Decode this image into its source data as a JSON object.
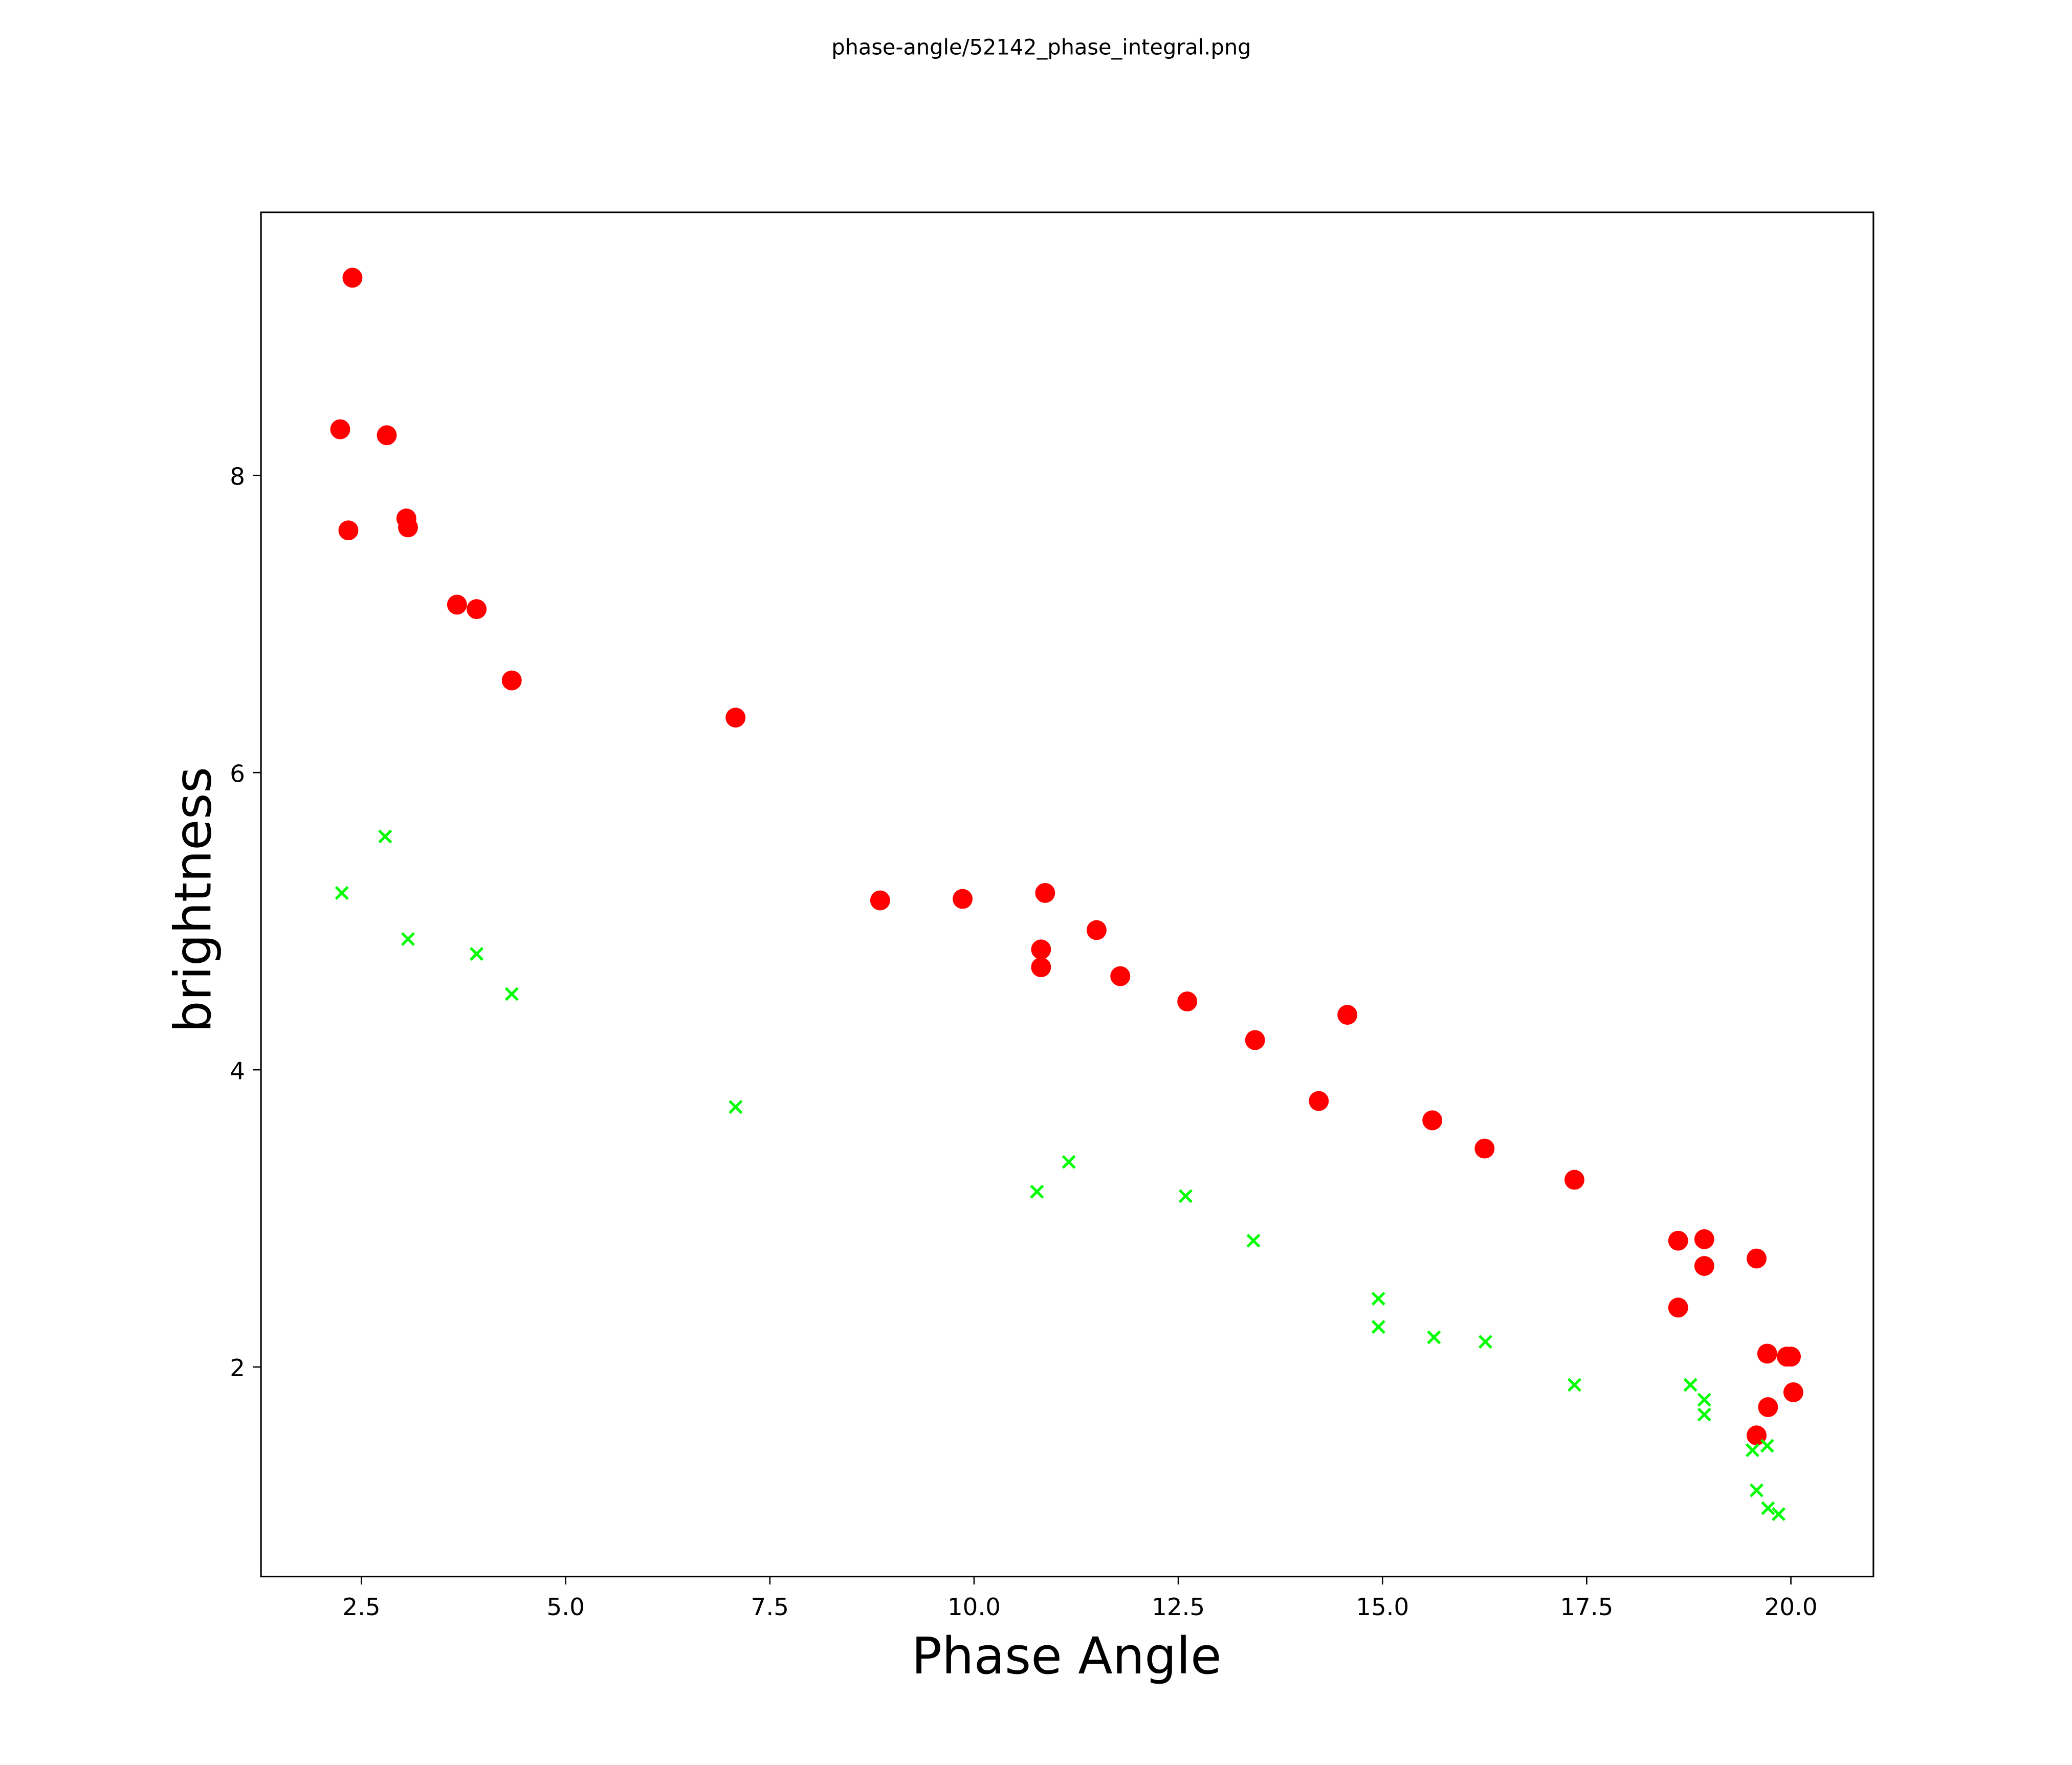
{
  "chart_data": {
    "type": "scatter",
    "title": "phase-angle/52142_phase_integral.png",
    "xlabel": "Phase Angle",
    "ylabel": "brightness",
    "xlim": [
      1.27,
      21.01
    ],
    "ylim": [
      0.59,
      9.77
    ],
    "xticks": [
      2.5,
      5.0,
      7.5,
      10.0,
      12.5,
      15.0,
      17.5,
      20.0
    ],
    "xtick_labels": [
      "2.5",
      "5.0",
      "7.5",
      "10.0",
      "12.5",
      "15.0",
      "17.5",
      "20.0"
    ],
    "yticks": [
      2,
      4,
      6,
      8
    ],
    "ytick_labels": [
      "2",
      "4",
      "6",
      "8"
    ],
    "grid": false,
    "series": [
      {
        "name": "red-circles",
        "color": "#ff0000",
        "marker": "circle",
        "x": [
          2.39,
          2.24,
          2.81,
          2.34,
          3.05,
          3.07,
          3.67,
          3.91,
          4.34,
          7.08,
          8.85,
          9.86,
          10.87,
          10.82,
          10.82,
          11.5,
          11.79,
          12.61,
          13.44,
          14.57,
          14.22,
          15.61,
          16.25,
          17.35,
          18.62,
          18.94,
          18.94,
          18.62,
          19.58,
          19.71,
          19.95,
          20.0,
          20.03,
          19.72,
          19.58
        ],
        "y": [
          9.33,
          8.31,
          8.27,
          7.63,
          7.71,
          7.65,
          7.13,
          7.1,
          6.62,
          6.37,
          5.14,
          5.15,
          5.19,
          4.81,
          4.69,
          4.94,
          4.63,
          4.46,
          4.2,
          4.37,
          3.79,
          3.66,
          3.47,
          3.26,
          2.85,
          2.86,
          2.68,
          2.4,
          2.73,
          2.09,
          2.07,
          2.07,
          1.83,
          1.73,
          1.54
        ]
      },
      {
        "name": "green-crosses",
        "color": "#00ff00",
        "marker": "x",
        "x": [
          2.79,
          2.26,
          3.07,
          3.91,
          4.34,
          7.08,
          10.77,
          11.16,
          12.59,
          13.42,
          14.95,
          14.95,
          15.63,
          16.26,
          17.35,
          18.77,
          18.94,
          18.94,
          19.53,
          19.71,
          19.58,
          19.72,
          19.85
        ],
        "y": [
          5.57,
          5.19,
          4.88,
          4.78,
          4.51,
          3.75,
          3.18,
          3.38,
          3.15,
          2.85,
          2.46,
          2.27,
          2.2,
          2.17,
          1.88,
          1.88,
          1.78,
          1.68,
          1.44,
          1.47,
          1.17,
          1.05,
          1.01
        ]
      }
    ]
  }
}
